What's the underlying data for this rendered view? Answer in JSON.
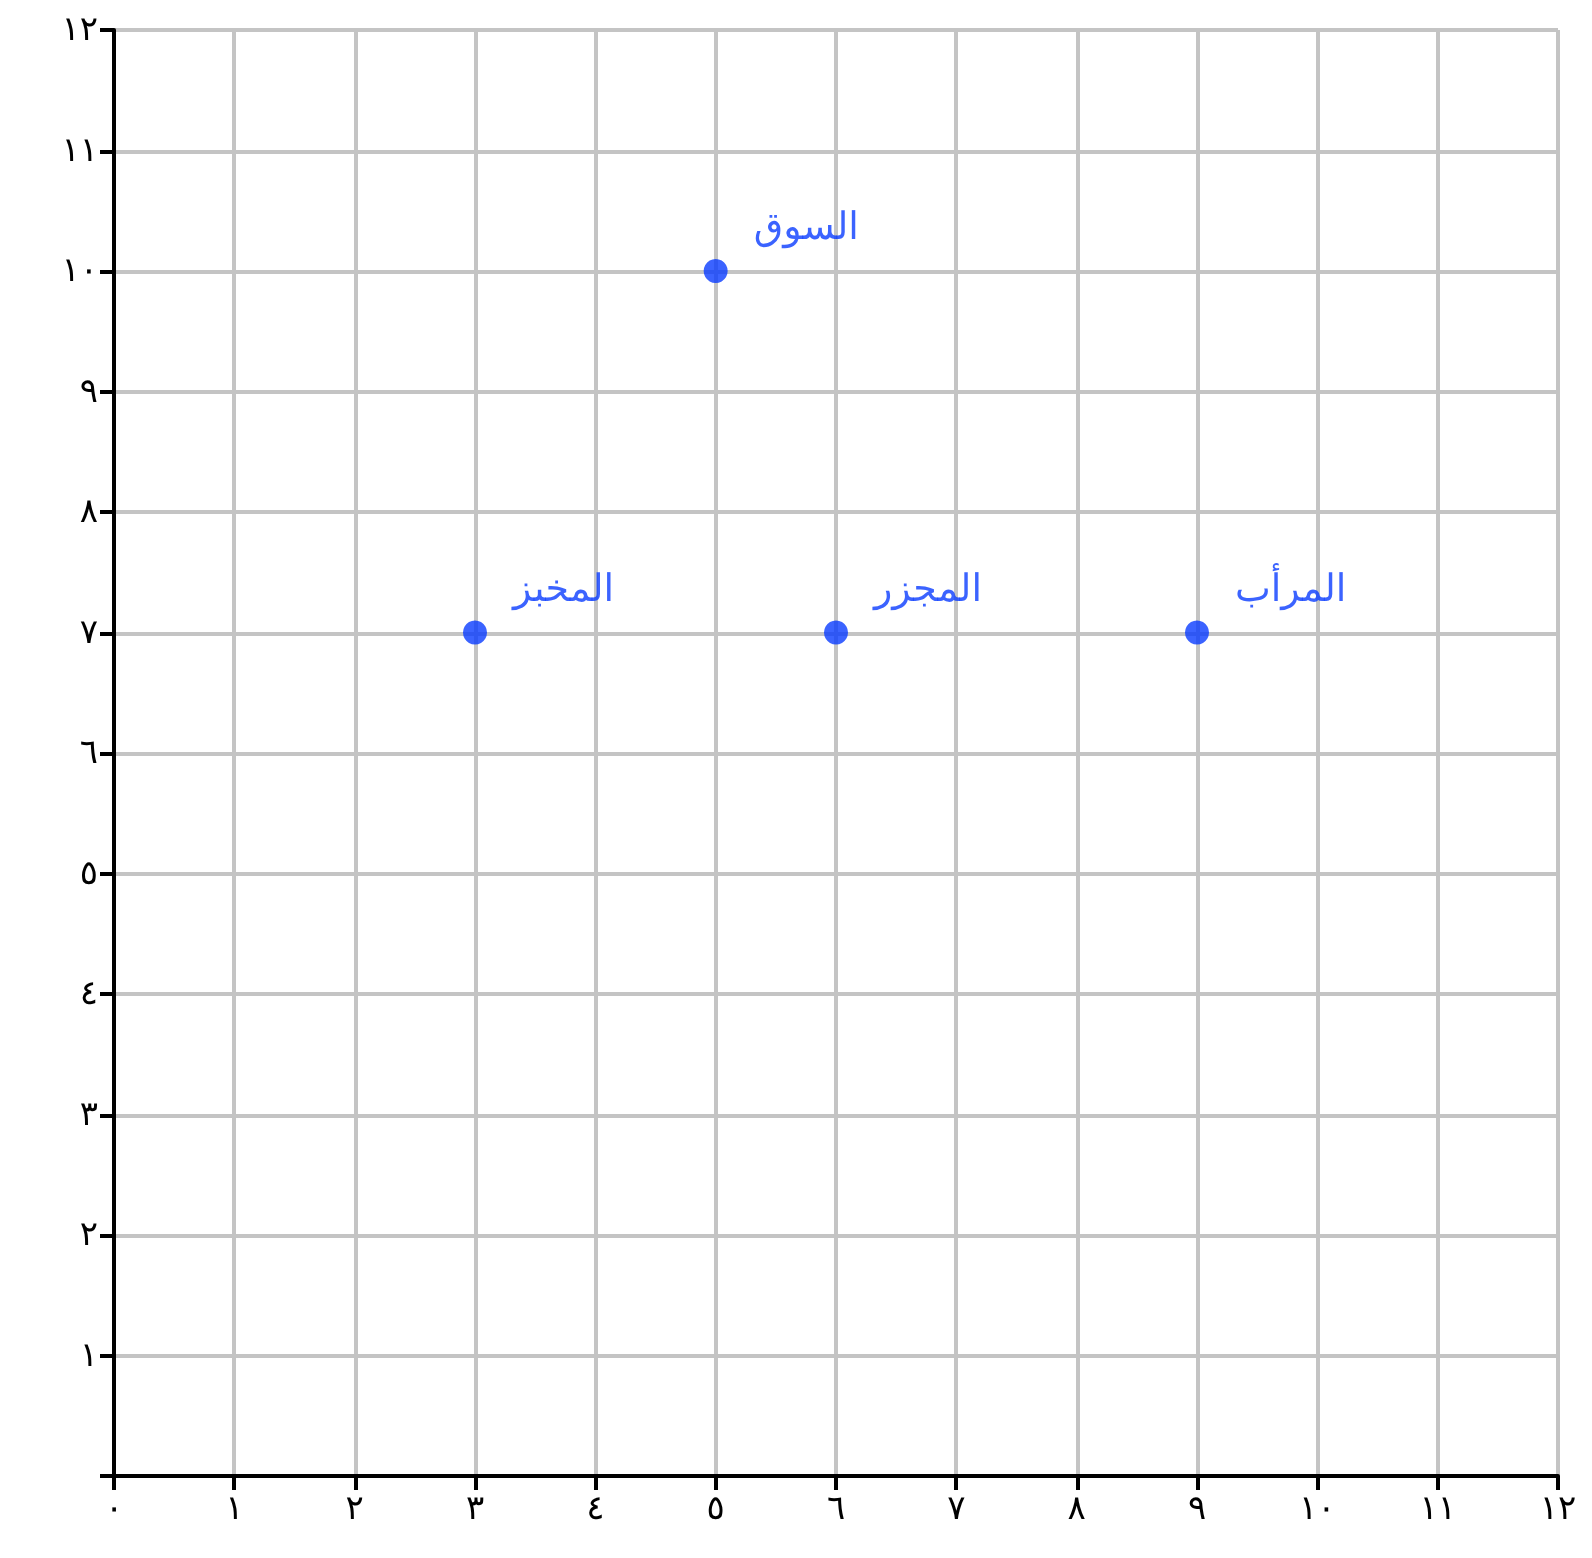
{
  "chart_data": {
    "type": "scatter",
    "color": "#0a3cff",
    "marker": "circle",
    "grid": true,
    "x": [
      3,
      5,
      6,
      9
    ],
    "values": [
      7,
      10,
      7,
      7
    ],
    "annotations": [
      {
        "text": "المخبز",
        "x": 3,
        "y": 7
      },
      {
        "text": "السوق",
        "x": 5,
        "y": 10
      },
      {
        "text": "المجزر",
        "x": 6,
        "y": 7
      },
      {
        "text": "المرأب",
        "x": 9,
        "y": 7
      }
    ],
    "xlim": [
      0,
      12
    ],
    "xticks": [
      {
        "value": 0,
        "label": "٠"
      },
      {
        "value": 1,
        "label": "١"
      },
      {
        "value": 2,
        "label": "٢"
      },
      {
        "value": 3,
        "label": "٣"
      },
      {
        "value": 4,
        "label": "٤"
      },
      {
        "value": 5,
        "label": "٥"
      },
      {
        "value": 6,
        "label": "٦"
      },
      {
        "value": 7,
        "label": "٧"
      },
      {
        "value": 8,
        "label": "٨"
      },
      {
        "value": 9,
        "label": "٩"
      },
      {
        "value": 10,
        "label": "١٠"
      },
      {
        "value": 11,
        "label": "١١"
      },
      {
        "value": 12,
        "label": "١٢"
      }
    ],
    "ylim": [
      0,
      12
    ],
    "yticks": [
      {
        "value": 0,
        "label": null
      },
      {
        "value": 1,
        "label": "١"
      },
      {
        "value": 2,
        "label": "٢"
      },
      {
        "value": 3,
        "label": "٣"
      },
      {
        "value": 4,
        "label": "٤"
      },
      {
        "value": 5,
        "label": "٥"
      },
      {
        "value": 6,
        "label": "٦"
      },
      {
        "value": 7,
        "label": "٧"
      },
      {
        "value": 8,
        "label": "٨"
      },
      {
        "value": 9,
        "label": "٩"
      },
      {
        "value": 10,
        "label": "١٠"
      },
      {
        "value": 11,
        "label": "١١"
      },
      {
        "value": 12,
        "label": "١٢"
      }
    ]
  }
}
